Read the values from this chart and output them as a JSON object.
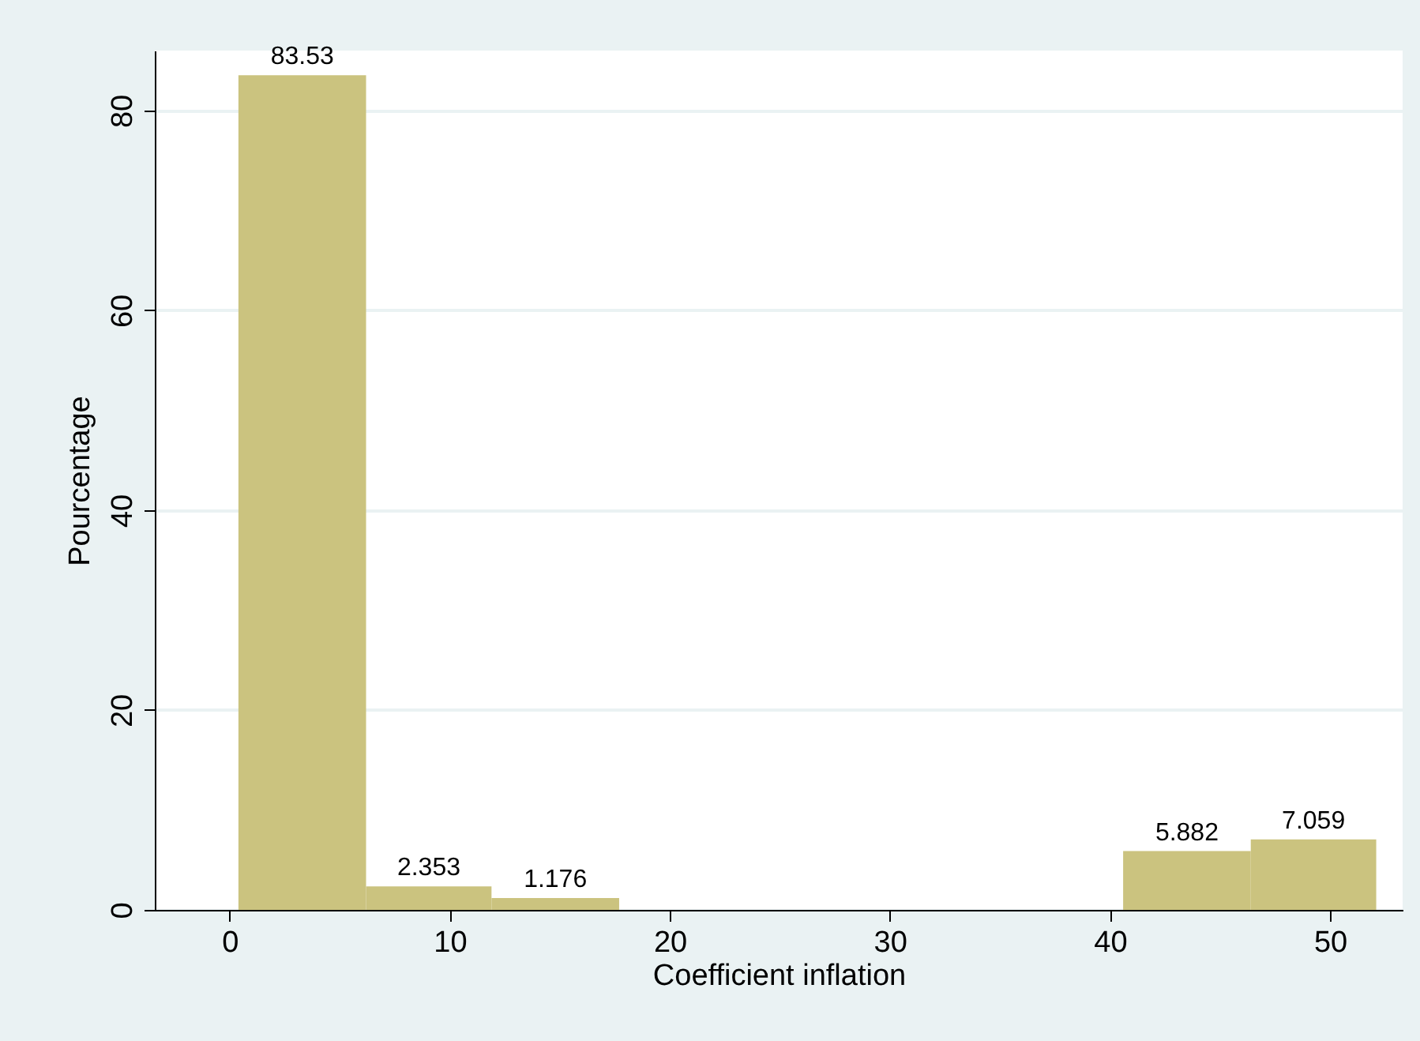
{
  "chart_data": {
    "type": "histogram",
    "xlabel": "Coefficient inflation",
    "ylabel": "Pourcentage",
    "bins": [
      0.4,
      6.2,
      11.9,
      17.7,
      40.6,
      46.4,
      52.1
    ],
    "values": [
      83.53,
      2.353,
      1.176,
      0,
      5.882,
      7.059
    ],
    "value_labels": [
      "83.53",
      "2.353",
      "1.176",
      null,
      "5.882",
      "7.059"
    ],
    "color": "#cbc37f",
    "xlim": [
      -3.4,
      53.3
    ],
    "xticks": [
      0,
      10,
      20,
      30,
      40,
      50
    ],
    "ylim": [
      0,
      86
    ],
    "yticks": [
      0,
      20,
      40,
      60,
      80
    ],
    "grid": "y"
  }
}
